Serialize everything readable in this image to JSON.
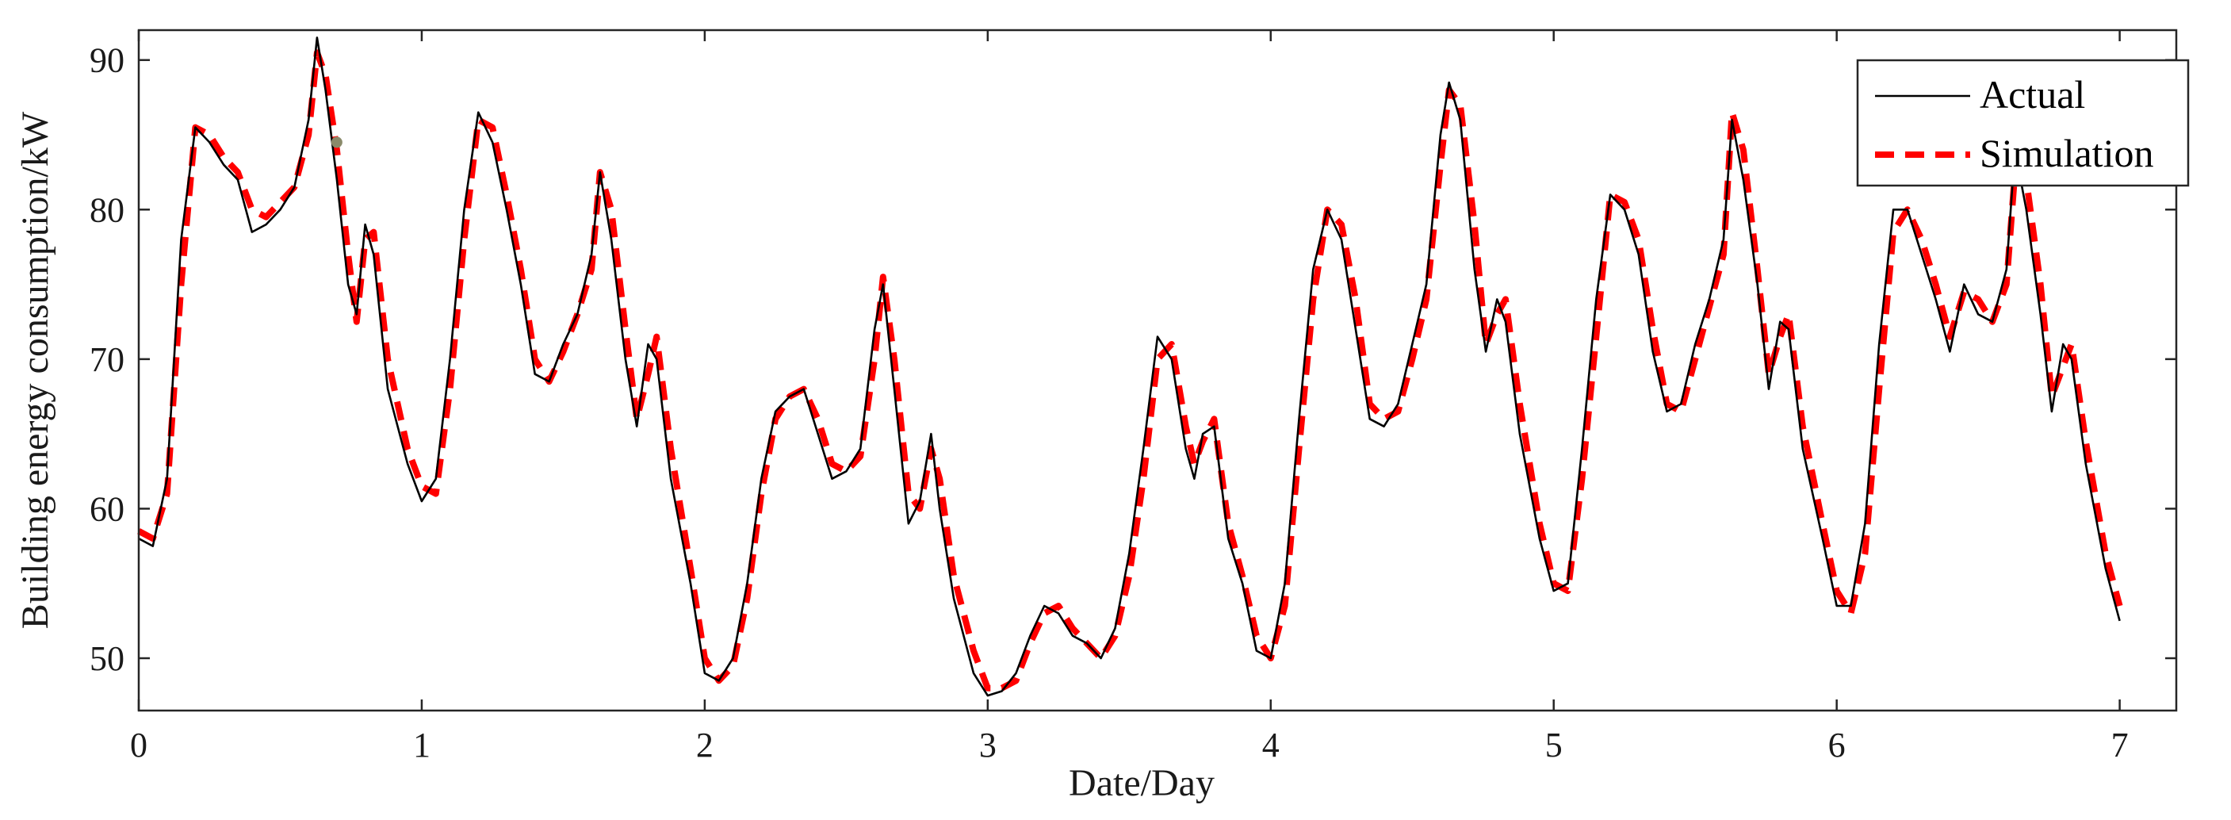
{
  "chart_data": {
    "type": "line",
    "xlabel": "Date/Day",
    "ylabel": "Building energy consumption/kW",
    "xlim": [
      0,
      7.2
    ],
    "ylim": [
      46.5,
      92
    ],
    "xticks": [
      0,
      1,
      2,
      3,
      4,
      5,
      6,
      7
    ],
    "yticks": [
      50,
      60,
      70,
      80,
      90
    ],
    "grid": false,
    "legend_position": "top-right",
    "series": [
      {
        "name": "Actual",
        "color": "#000000",
        "style": "solid",
        "x": [
          0.0,
          0.05,
          0.1,
          0.15,
          0.2,
          0.25,
          0.3,
          0.35,
          0.4,
          0.45,
          0.5,
          0.55,
          0.6,
          0.63,
          0.66,
          0.7,
          0.74,
          0.77,
          0.8,
          0.83,
          0.88,
          0.95,
          1.0,
          1.05,
          1.1,
          1.15,
          1.2,
          1.25,
          1.3,
          1.35,
          1.4,
          1.45,
          1.5,
          1.55,
          1.6,
          1.63,
          1.67,
          1.72,
          1.76,
          1.8,
          1.83,
          1.88,
          1.95,
          2.0,
          2.05,
          2.1,
          2.15,
          2.2,
          2.25,
          2.3,
          2.35,
          2.4,
          2.45,
          2.5,
          2.55,
          2.6,
          2.63,
          2.67,
          2.72,
          2.76,
          2.8,
          2.83,
          2.88,
          2.95,
          3.0,
          3.05,
          3.1,
          3.15,
          3.2,
          3.25,
          3.3,
          3.35,
          3.4,
          3.45,
          3.5,
          3.55,
          3.6,
          3.65,
          3.7,
          3.73,
          3.76,
          3.8,
          3.85,
          3.9,
          3.95,
          4.0,
          4.05,
          4.1,
          4.15,
          4.2,
          4.25,
          4.3,
          4.35,
          4.4,
          4.45,
          4.5,
          4.55,
          4.6,
          4.63,
          4.67,
          4.72,
          4.76,
          4.8,
          4.83,
          4.88,
          4.95,
          5.0,
          5.05,
          5.1,
          5.15,
          5.2,
          5.25,
          5.3,
          5.35,
          5.4,
          5.45,
          5.5,
          5.55,
          5.6,
          5.63,
          5.67,
          5.72,
          5.76,
          5.8,
          5.83,
          5.88,
          5.95,
          6.0,
          6.05,
          6.1,
          6.15,
          6.2,
          6.25,
          6.3,
          6.35,
          6.4,
          6.45,
          6.5,
          6.55,
          6.6,
          6.63,
          6.67,
          6.72,
          6.76,
          6.8,
          6.83,
          6.88,
          6.95,
          7.0
        ],
        "y": [
          58,
          57.5,
          62,
          78,
          85.5,
          84.5,
          83,
          82,
          78.5,
          79,
          80,
          81.5,
          86,
          91.5,
          88,
          82,
          75,
          73,
          79,
          77,
          68,
          63,
          60.5,
          62,
          70,
          80,
          86.5,
          84.5,
          80,
          75,
          69,
          68.5,
          71,
          73,
          77,
          82.5,
          78,
          70,
          65.5,
          71,
          70,
          62,
          55,
          49,
          48.5,
          50,
          55,
          62,
          66.5,
          67.5,
          68,
          65,
          62,
          62.5,
          64,
          72,
          75,
          68,
          59,
          60.5,
          65,
          60,
          54,
          49,
          47.5,
          47.8,
          49,
          51.5,
          53.5,
          53,
          51.5,
          51,
          50,
          52,
          57,
          64,
          71.5,
          70,
          64,
          62,
          65,
          65.5,
          58,
          55,
          50.5,
          50,
          55,
          66,
          76,
          80,
          78,
          72,
          66,
          65.5,
          67,
          71,
          75,
          85,
          88.5,
          86,
          76,
          70.5,
          74,
          72.5,
          65,
          58,
          54.5,
          55,
          64,
          74,
          81,
          80,
          77,
          70.5,
          66.5,
          67,
          71,
          74,
          78,
          86,
          82,
          75,
          68,
          72.5,
          72,
          64,
          58,
          53.5,
          53.5,
          59,
          71,
          80,
          80,
          77,
          74,
          70.5,
          75,
          73,
          72.5,
          76,
          84,
          80,
          73,
          66.5,
          71,
          70,
          63,
          56,
          52.5
        ]
      },
      {
        "name": "Simulation",
        "color": "#ff0000",
        "style": "dashed",
        "x": [
          0.0,
          0.05,
          0.1,
          0.15,
          0.2,
          0.25,
          0.3,
          0.35,
          0.4,
          0.45,
          0.5,
          0.55,
          0.6,
          0.63,
          0.66,
          0.7,
          0.74,
          0.77,
          0.8,
          0.83,
          0.88,
          0.95,
          1.0,
          1.05,
          1.1,
          1.15,
          1.2,
          1.25,
          1.3,
          1.35,
          1.4,
          1.45,
          1.5,
          1.55,
          1.6,
          1.63,
          1.67,
          1.72,
          1.76,
          1.8,
          1.83,
          1.88,
          1.95,
          2.0,
          2.05,
          2.1,
          2.15,
          2.2,
          2.25,
          2.3,
          2.35,
          2.4,
          2.45,
          2.5,
          2.55,
          2.6,
          2.63,
          2.67,
          2.72,
          2.76,
          2.8,
          2.83,
          2.88,
          2.95,
          3.0,
          3.05,
          3.1,
          3.15,
          3.2,
          3.25,
          3.3,
          3.35,
          3.4,
          3.45,
          3.5,
          3.55,
          3.6,
          3.65,
          3.7,
          3.73,
          3.76,
          3.8,
          3.85,
          3.9,
          3.95,
          4.0,
          4.05,
          4.1,
          4.15,
          4.2,
          4.25,
          4.3,
          4.35,
          4.4,
          4.45,
          4.5,
          4.55,
          4.6,
          4.63,
          4.67,
          4.72,
          4.76,
          4.8,
          4.83,
          4.88,
          4.95,
          5.0,
          5.05,
          5.1,
          5.15,
          5.2,
          5.25,
          5.3,
          5.35,
          5.4,
          5.45,
          5.5,
          5.55,
          5.6,
          5.63,
          5.67,
          5.72,
          5.76,
          5.8,
          5.83,
          5.88,
          5.95,
          6.0,
          6.05,
          6.1,
          6.15,
          6.2,
          6.25,
          6.3,
          6.35,
          6.4,
          6.45,
          6.5,
          6.55,
          6.6,
          6.63,
          6.67,
          6.72,
          6.76,
          6.8,
          6.83,
          6.88,
          6.95,
          7.0
        ],
        "y": [
          58.5,
          58,
          61,
          75,
          85.5,
          85,
          83.5,
          82.5,
          80,
          79.5,
          80.5,
          81.5,
          85,
          90.5,
          89,
          84,
          77,
          72.5,
          78,
          78.5,
          70,
          64,
          61.5,
          61,
          68,
          78,
          86,
          85.5,
          81,
          76,
          70,
          68.5,
          70.5,
          73,
          76,
          82.5,
          80,
          72,
          66,
          69,
          71.5,
          64,
          56,
          50,
          48.5,
          49.5,
          54,
          61,
          66,
          67.5,
          68,
          66,
          63,
          62.5,
          63.5,
          70,
          75.5,
          70,
          61,
          60,
          64,
          62,
          55.5,
          50.5,
          48,
          48,
          48.5,
          51,
          53,
          53.5,
          52,
          51,
          50,
          51.5,
          55.5,
          62,
          70,
          71,
          65.5,
          63,
          64.5,
          66,
          59,
          55.5,
          51.5,
          50,
          53.5,
          64,
          74,
          80,
          79,
          74,
          67,
          66,
          66.5,
          70,
          74,
          83,
          88,
          87,
          79,
          71,
          73,
          74,
          67,
          59,
          55,
          54.5,
          62,
          71.5,
          81,
          80.5,
          78,
          72,
          67,
          66.5,
          70,
          73.5,
          77,
          86.5,
          84,
          76,
          69,
          71.5,
          73,
          65.5,
          59,
          54.5,
          53,
          57,
          68,
          78.5,
          80,
          78,
          75,
          71.5,
          74.5,
          74,
          72.5,
          75,
          82.5,
          82,
          75,
          67.5,
          69.5,
          71,
          64.5,
          57,
          53.5
        ]
      }
    ],
    "annotations": [
      {
        "type": "marker",
        "x": 0.7,
        "y": 84.5,
        "color": "#8a8a6a"
      }
    ]
  }
}
